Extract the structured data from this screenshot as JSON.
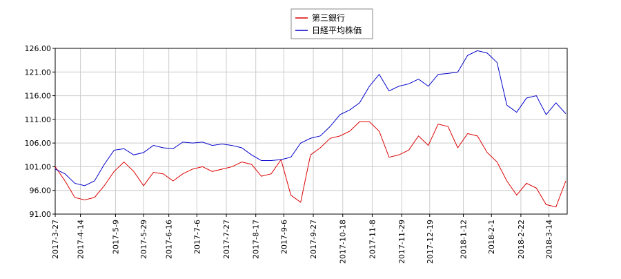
{
  "chart_data": {
    "type": "line",
    "x": [
      "2017-3-27",
      "2017-4-3",
      "2017-4-10",
      "2017-4-17",
      "2017-4-24",
      "2017-5-1",
      "2017-5-8",
      "2017-5-15",
      "2017-5-22",
      "2017-5-29",
      "2017-6-5",
      "2017-6-12",
      "2017-6-19",
      "2017-6-26",
      "2017-7-3",
      "2017-7-10",
      "2017-7-17",
      "2017-7-24",
      "2017-7-31",
      "2017-8-7",
      "2017-8-14",
      "2017-8-21",
      "2017-8-28",
      "2017-9-4",
      "2017-9-11",
      "2017-9-18",
      "2017-9-25",
      "2017-10-2",
      "2017-10-9",
      "2017-10-16",
      "2017-10-23",
      "2017-10-30",
      "2017-11-6",
      "2017-11-13",
      "2017-11-20",
      "2017-11-27",
      "2017-12-4",
      "2017-12-11",
      "2017-12-18",
      "2017-12-25",
      "2018-1-1",
      "2018-1-8",
      "2018-1-15",
      "2018-1-22",
      "2018-1-29",
      "2018-2-5",
      "2018-2-12",
      "2018-2-19",
      "2018-2-26",
      "2018-3-5",
      "2018-3-12",
      "2018-3-19",
      "2018-3-26"
    ],
    "series": [
      {
        "name": "第三銀行",
        "color": "#dd0000",
        "values": [
          101,
          98,
          94.5,
          94,
          94.5,
          97,
          100,
          102,
          100,
          97,
          99.8,
          99.5,
          98,
          99.5,
          100.5,
          101,
          100,
          100.5,
          101,
          102,
          101.5,
          99,
          99.5,
          102.5,
          95,
          93.5,
          103.5,
          105,
          107,
          107.5,
          108.5,
          110.5,
          110.5,
          108.5,
          103,
          103.5,
          104.5,
          107.5,
          105.5,
          110,
          109.5,
          105,
          108,
          107.5,
          104,
          102,
          98,
          95,
          97.5,
          96.5,
          93,
          92.5,
          98
        ]
      },
      {
        "name": "日経平均株価",
        "color": "#0000cc",
        "values": [
          100.5,
          99.5,
          97.5,
          97,
          98,
          101.5,
          104.5,
          104.8,
          103.5,
          104,
          105.5,
          105,
          104.8,
          106.2,
          106,
          106.2,
          105.5,
          105.8,
          105.5,
          105,
          103.5,
          102.3,
          102.3,
          102.5,
          103,
          106,
          107,
          107.5,
          109.5,
          112,
          113,
          114.5,
          118,
          120.5,
          117,
          118,
          118.5,
          119.5,
          118,
          120.5,
          120.7,
          121,
          124.5,
          125.5,
          125,
          123,
          114,
          112.5,
          115.5,
          116,
          112,
          114.5,
          112.2
        ]
      }
    ],
    "xlim": [
      "2017-3-27",
      "2018-3-27"
    ],
    "xticks": [
      "2017-3-27",
      "2017-4-14",
      "2017-5-9",
      "2017-5-29",
      "2017-6-16",
      "2017-7-6",
      "2017-7-27",
      "2017-8-17",
      "2017-9-6",
      "2017-9-27",
      "2017-10-18",
      "2017-11-8",
      "2017-11-29",
      "2017-12-19",
      "2018-1-12",
      "2018-2-1",
      "2018-2-22",
      "2018-3-14"
    ],
    "ylim": [
      91,
      126
    ],
    "yticks": [
      {
        "value": 91,
        "label": "91.00"
      },
      {
        "value": 96,
        "label": "96.00"
      },
      {
        "value": 101,
        "label": "101.00"
      },
      {
        "value": 106,
        "label": "106.00"
      },
      {
        "value": 111,
        "label": "111.00"
      },
      {
        "value": 116,
        "label": "116.00"
      },
      {
        "value": 121,
        "label": "121.00"
      },
      {
        "value": 126,
        "label": "126.00"
      }
    ],
    "grid": true,
    "legend": "top"
  }
}
